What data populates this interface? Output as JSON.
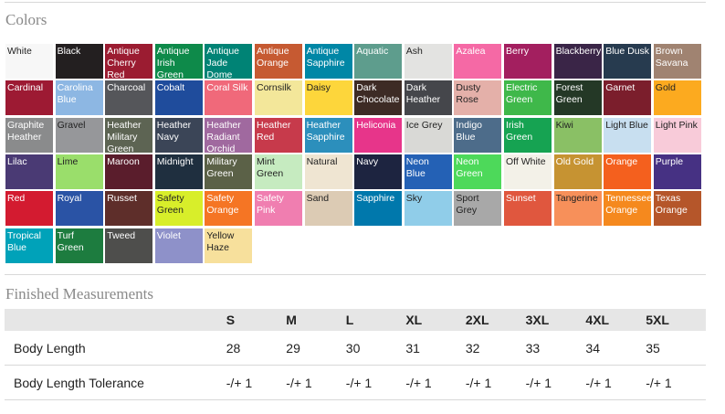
{
  "colors_section": {
    "heading": "Colors",
    "swatches": [
      {
        "label": "White",
        "bg": "#f7f7f7",
        "fg": "#222222"
      },
      {
        "label": "Black",
        "bg": "#231f20",
        "fg": "#ffffff"
      },
      {
        "label": "Antique Cherry Red",
        "bg": "#9b1c31",
        "fg": "#ffffff"
      },
      {
        "label": "Antique Irish Green",
        "bg": "#0e8a4a",
        "fg": "#ffffff"
      },
      {
        "label": "Antique Jade Dome",
        "bg": "#008375",
        "fg": "#ffffff"
      },
      {
        "label": "Antique Orange",
        "bg": "#c65a32",
        "fg": "#ffffff"
      },
      {
        "label": "Antique Sapphire",
        "bg": "#0087a6",
        "fg": "#ffffff"
      },
      {
        "label": "Aquatic",
        "bg": "#5e9d8d",
        "fg": "#ffffff"
      },
      {
        "label": "Ash",
        "bg": "#e3e3e1",
        "fg": "#222222"
      },
      {
        "label": "Azalea",
        "bg": "#f569a5",
        "fg": "#ffffff"
      },
      {
        "label": "Berry",
        "bg": "#a31f5f",
        "fg": "#ffffff"
      },
      {
        "label": "Blackberry",
        "bg": "#3a2547",
        "fg": "#ffffff"
      },
      {
        "label": "Blue Dusk",
        "bg": "#273b4f",
        "fg": "#ffffff"
      },
      {
        "label": "Brown Savana",
        "bg": "#a08371",
        "fg": "#ffffff"
      },
      {
        "label": "Cardinal",
        "bg": "#9d1a33",
        "fg": "#ffffff"
      },
      {
        "label": "Carolina Blue",
        "bg": "#8db7e3",
        "fg": "#ffffff"
      },
      {
        "label": "Charcoal",
        "bg": "#55565a",
        "fg": "#ffffff"
      },
      {
        "label": "Cobalt",
        "bg": "#1f4c9c",
        "fg": "#ffffff"
      },
      {
        "label": "Coral Silk",
        "bg": "#f0697a",
        "fg": "#ffffff"
      },
      {
        "label": "Cornsilk",
        "bg": "#f3e79a",
        "fg": "#222222"
      },
      {
        "label": "Daisy",
        "bg": "#fdd63b",
        "fg": "#222222"
      },
      {
        "label": "Dark Chocolate",
        "bg": "#3d2b25",
        "fg": "#ffffff"
      },
      {
        "label": "Dark Heather",
        "bg": "#45464b",
        "fg": "#ffffff"
      },
      {
        "label": "Dusty Rose",
        "bg": "#e4b0a9",
        "fg": "#222222"
      },
      {
        "label": "Electric Green",
        "bg": "#3fb84a",
        "fg": "#ffffff"
      },
      {
        "label": "Forest Green",
        "bg": "#243826",
        "fg": "#ffffff"
      },
      {
        "label": "Garnet",
        "bg": "#7b1e2c",
        "fg": "#ffffff"
      },
      {
        "label": "Gold",
        "bg": "#fcaa1f",
        "fg": "#222222"
      },
      {
        "label": "Graphite Heather",
        "bg": "#8a8b8c",
        "fg": "#ffffff"
      },
      {
        "label": "Gravel",
        "bg": "#96979a",
        "fg": "#222222"
      },
      {
        "label": "Heather Military Green",
        "bg": "#5d6453",
        "fg": "#ffffff"
      },
      {
        "label": "Heather Navy",
        "bg": "#3b4557",
        "fg": "#ffffff"
      },
      {
        "label": "Heather Radiant Orchid",
        "bg": "#a0699f",
        "fg": "#ffffff"
      },
      {
        "label": "Heather Red",
        "bg": "#c73a4b",
        "fg": "#ffffff"
      },
      {
        "label": "Heather Sapphire",
        "bg": "#2c8fbc",
        "fg": "#ffffff"
      },
      {
        "label": "Heliconia",
        "bg": "#e7358a",
        "fg": "#ffffff"
      },
      {
        "label": "Ice Grey",
        "bg": "#d9d9d6",
        "fg": "#222222"
      },
      {
        "label": "Indigo Blue",
        "bg": "#4d6c8a",
        "fg": "#ffffff"
      },
      {
        "label": "Irish Green",
        "bg": "#16a352",
        "fg": "#ffffff"
      },
      {
        "label": "Kiwi",
        "bg": "#8ac065",
        "fg": "#222222"
      },
      {
        "label": "Light Blue",
        "bg": "#c8dff0",
        "fg": "#222222"
      },
      {
        "label": "Light Pink",
        "bg": "#f8cbd9",
        "fg": "#222222"
      },
      {
        "label": "Lilac",
        "bg": "#4a3a74",
        "fg": "#ffffff"
      },
      {
        "label": "Lime",
        "bg": "#9ade6b",
        "fg": "#222222"
      },
      {
        "label": "Maroon",
        "bg": "#5a1d2c",
        "fg": "#ffffff"
      },
      {
        "label": "Midnight",
        "bg": "#1f2f3f",
        "fg": "#ffffff"
      },
      {
        "label": "Military Green",
        "bg": "#5b6147",
        "fg": "#ffffff"
      },
      {
        "label": "Mint Green",
        "bg": "#c6ebc0",
        "fg": "#222222"
      },
      {
        "label": "Natural",
        "bg": "#efe5d2",
        "fg": "#222222"
      },
      {
        "label": "Navy",
        "bg": "#1d2440",
        "fg": "#ffffff"
      },
      {
        "label": "Neon Blue",
        "bg": "#2461b5",
        "fg": "#ffffff"
      },
      {
        "label": "Neon Green",
        "bg": "#4dd95a",
        "fg": "#ffffff"
      },
      {
        "label": "Off White",
        "bg": "#f3f1e8",
        "fg": "#222222"
      },
      {
        "label": "Old Gold",
        "bg": "#c69332",
        "fg": "#ffffff"
      },
      {
        "label": "Orange",
        "bg": "#f4601e",
        "fg": "#ffffff"
      },
      {
        "label": "Purple",
        "bg": "#463183",
        "fg": "#ffffff"
      },
      {
        "label": "Red",
        "bg": "#d31b30",
        "fg": "#ffffff"
      },
      {
        "label": "Royal",
        "bg": "#2a53a5",
        "fg": "#ffffff"
      },
      {
        "label": "Russet",
        "bg": "#5e2e2a",
        "fg": "#ffffff"
      },
      {
        "label": "Safety Green",
        "bg": "#d8ee2a",
        "fg": "#222222"
      },
      {
        "label": "Safety Orange",
        "bg": "#f57524",
        "fg": "#ffffff"
      },
      {
        "label": "Safety Pink",
        "bg": "#f07eb0",
        "fg": "#ffffff"
      },
      {
        "label": "Sand",
        "bg": "#dccbb4",
        "fg": "#222222"
      },
      {
        "label": "Sapphire",
        "bg": "#0078ac",
        "fg": "#ffffff"
      },
      {
        "label": "Sky",
        "bg": "#90cde9",
        "fg": "#222222"
      },
      {
        "label": "Sport Grey",
        "bg": "#a8a8a8",
        "fg": "#222222"
      },
      {
        "label": "Sunset",
        "bg": "#e0573e",
        "fg": "#ffffff"
      },
      {
        "label": "Tangerine",
        "bg": "#f7905a",
        "fg": "#222222"
      },
      {
        "label": "Tennessee Orange",
        "bg": "#f5891e",
        "fg": "#ffffff"
      },
      {
        "label": "Texas Orange",
        "bg": "#b5562a",
        "fg": "#ffffff"
      },
      {
        "label": "Tropical Blue",
        "bg": "#00a2b9",
        "fg": "#ffffff"
      },
      {
        "label": "Turf Green",
        "bg": "#1d7c3f",
        "fg": "#ffffff"
      },
      {
        "label": "Tweed",
        "bg": "#4e4e4c",
        "fg": "#ffffff"
      },
      {
        "label": "Violet",
        "bg": "#8e91c9",
        "fg": "#ffffff"
      },
      {
        "label": "Yellow Haze",
        "bg": "#f7e09c",
        "fg": "#222222"
      }
    ]
  },
  "measurements_section": {
    "heading": "Finished Measurements",
    "sizes": [
      "S",
      "M",
      "L",
      "XL",
      "2XL",
      "3XL",
      "4XL",
      "5XL"
    ],
    "rows": [
      {
        "label": "Body Length",
        "values": [
          "28",
          "29",
          "30",
          "31",
          "32",
          "33",
          "34",
          "35"
        ]
      },
      {
        "label": "Body Length Tolerance",
        "values": [
          "-/+ 1",
          "-/+ 1",
          "-/+ 1",
          "-/+ 1",
          "-/+ 1",
          "-/+ 1",
          "-/+ 1",
          "-/+ 1"
        ]
      }
    ]
  }
}
